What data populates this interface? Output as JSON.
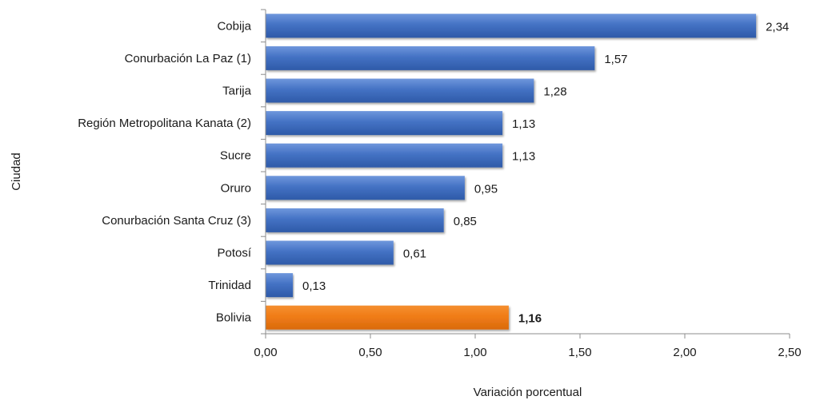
{
  "chart_data": {
    "type": "bar",
    "orientation": "horizontal",
    "categories": [
      "Cobija",
      "Conurbación La Paz (1)",
      "Tarija",
      "Región Metropolitana Kanata (2)",
      "Sucre",
      "Oruro",
      "Conurbación Santa Cruz (3)",
      "Potosí",
      "Trinidad",
      "Bolivia"
    ],
    "values": [
      2.34,
      1.57,
      1.28,
      1.13,
      1.13,
      0.95,
      0.85,
      0.61,
      0.13,
      1.16
    ],
    "value_labels": [
      "2,34",
      "1,57",
      "1,28",
      "1,13",
      "1,13",
      "0,95",
      "0,85",
      "0,61",
      "0,13",
      "1,16"
    ],
    "highlight_index": 9,
    "xlabel": "Variación porcentual",
    "ylabel": "Ciudad",
    "xlim": [
      0,
      2.5
    ],
    "xticks": [
      0,
      0.5,
      1.0,
      1.5,
      2.0,
      2.5
    ],
    "xtick_labels": [
      "0,00",
      "0,50",
      "1,00",
      "1,50",
      "2,00",
      "2,50"
    ],
    "grid": false,
    "colors": {
      "bar": "#4472c4",
      "bar_dark": "#2e5aa8",
      "bar_light": "#6f97dc",
      "highlight": "#f07c17",
      "highlight_dark": "#d96a0c",
      "axis": "#8c8c8c"
    }
  }
}
